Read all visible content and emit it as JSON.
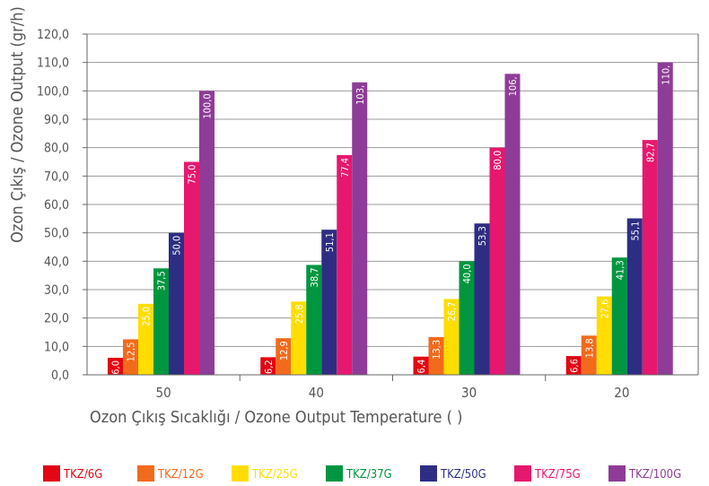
{
  "chart_data": {
    "type": "bar",
    "xlabel": "Ozon Çıkış Sıcaklığı / Ozone Output Temperature (   )",
    "ylabel": "Ozon Çıkış / Ozone Output (gr/h)",
    "ylim": [
      0,
      120
    ],
    "yticks": [
      "0,0",
      "10,0",
      "20,0",
      "30,0",
      "40,0",
      "50,0",
      "60,0",
      "70,0",
      "80,0",
      "90,0",
      "100,0",
      "110,0",
      "120,0"
    ],
    "categories": [
      "50",
      "40",
      "30",
      "20"
    ],
    "grid": true,
    "legend_position": "bottom",
    "series": [
      {
        "name": "TKZ/6G",
        "color": "#e30613",
        "values": [
          6.0,
          6.2,
          6.4,
          6.6
        ],
        "labels": [
          "6,0",
          "6,2",
          "6,4",
          "6,6"
        ]
      },
      {
        "name": "TKZ/12G",
        "color": "#f26a1b",
        "values": [
          12.5,
          12.9,
          13.3,
          13.8
        ],
        "labels": [
          "12,5",
          "12,9",
          "13,3",
          "13,8"
        ]
      },
      {
        "name": "TKZ/25G",
        "color": "#ffdd00",
        "values": [
          25.0,
          25.8,
          26.7,
          27.6
        ],
        "labels": [
          "25,0",
          "25,8",
          "26,7",
          "27,6"
        ]
      },
      {
        "name": "TKZ/37G",
        "color": "#009640",
        "values": [
          37.5,
          38.7,
          40.0,
          41.3
        ],
        "labels": [
          "37,5",
          "38,7",
          "40,0",
          "41,3"
        ]
      },
      {
        "name": "TKZ/50G",
        "color": "#2d2e83",
        "values": [
          50.0,
          51.1,
          53.3,
          55.1
        ],
        "labels": [
          "50,0",
          "51,1",
          "53,3",
          "55,1"
        ]
      },
      {
        "name": "TKZ/75G",
        "color": "#e6186e",
        "values": [
          75.0,
          77.4,
          80.0,
          82.7
        ],
        "labels": [
          "75,0",
          "77,4",
          "80,0",
          "82,7"
        ]
      },
      {
        "name": "TKZ/100G",
        "color": "#8e3c97",
        "values": [
          100.0,
          103.0,
          106.0,
          110.0
        ],
        "labels": [
          "100,0",
          "103,",
          "106,",
          "110,"
        ]
      }
    ]
  }
}
